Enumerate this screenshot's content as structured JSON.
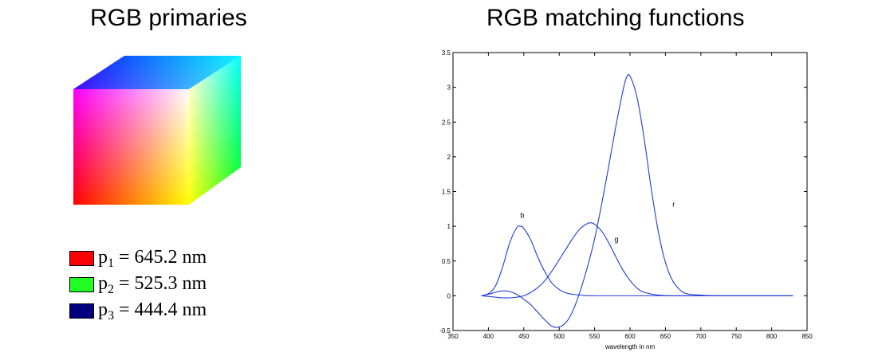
{
  "titles": {
    "left": "RGB primaries",
    "right": "RGB matching functions"
  },
  "legend": [
    {
      "p": "p",
      "sub": "1",
      "rest": " = 645.2 nm",
      "color": "#ff0000"
    },
    {
      "p": "p",
      "sub": "2",
      "rest": " = 525.3 nm",
      "color": "#22ff22"
    },
    {
      "p": "p",
      "sub": "3",
      "rest": " = 444.4 nm",
      "color": "#000080"
    }
  ],
  "chart_data": {
    "type": "line",
    "title": "",
    "xlabel": "wavelength in nm",
    "ylabel": "",
    "xlim": [
      350,
      850
    ],
    "ylim": [
      -0.5,
      3.5
    ],
    "x_ticks": [
      "350",
      "400",
      "450",
      "500",
      "550",
      "600",
      "650",
      "700",
      "750",
      "800",
      "850"
    ],
    "y_ticks": [
      "-0.5",
      "0",
      "0.5",
      "1",
      "1.5",
      "2",
      "2.5",
      "3",
      "3.5"
    ],
    "line_color": "#1f3bd6",
    "series": [
      {
        "name": "b",
        "x": [
          390,
          400,
          410,
          420,
          430,
          440,
          445,
          450,
          460,
          470,
          480,
          490,
          500,
          510,
          520,
          530,
          540,
          550,
          560,
          580,
          600,
          650,
          700,
          830
        ],
        "y": [
          0.0,
          0.03,
          0.14,
          0.41,
          0.76,
          0.98,
          1.0,
          0.97,
          0.8,
          0.55,
          0.34,
          0.18,
          0.09,
          0.04,
          0.02,
          0.01,
          0.0,
          0.0,
          0.0,
          0.0,
          0.0,
          0.0,
          0.0,
          0.0
        ]
      },
      {
        "name": "g",
        "x": [
          390,
          400,
          410,
          420,
          430,
          440,
          450,
          460,
          470,
          480,
          490,
          500,
          510,
          520,
          530,
          540,
          545,
          550,
          560,
          570,
          580,
          590,
          600,
          610,
          620,
          640,
          660,
          700,
          830
        ],
        "y": [
          0.0,
          -0.01,
          -0.02,
          -0.03,
          -0.03,
          -0.02,
          0.0,
          0.05,
          0.12,
          0.22,
          0.36,
          0.52,
          0.68,
          0.84,
          0.97,
          1.04,
          1.05,
          1.03,
          0.93,
          0.76,
          0.56,
          0.37,
          0.22,
          0.11,
          0.05,
          0.01,
          0.0,
          0.0,
          0.0
        ]
      },
      {
        "name": "r",
        "x": [
          390,
          400,
          410,
          420,
          430,
          440,
          450,
          460,
          470,
          480,
          490,
          500,
          510,
          520,
          530,
          540,
          550,
          560,
          570,
          580,
          590,
          595,
          600,
          610,
          620,
          630,
          640,
          650,
          660,
          670,
          680,
          700,
          730,
          830
        ],
        "y": [
          0.0,
          0.02,
          0.05,
          0.07,
          0.06,
          0.02,
          -0.05,
          -0.13,
          -0.24,
          -0.35,
          -0.44,
          -0.45,
          -0.38,
          -0.2,
          0.08,
          0.42,
          0.82,
          1.32,
          1.87,
          2.44,
          2.95,
          3.14,
          3.16,
          2.85,
          2.26,
          1.54,
          0.92,
          0.48,
          0.22,
          0.09,
          0.03,
          0.01,
          0.0,
          0.0
        ]
      }
    ],
    "annotations": [
      {
        "text": "b",
        "x": 445,
        "y": 1.12
      },
      {
        "text": "g",
        "x": 578,
        "y": 0.78
      },
      {
        "text": "r",
        "x": 660,
        "y": 1.28
      }
    ]
  }
}
